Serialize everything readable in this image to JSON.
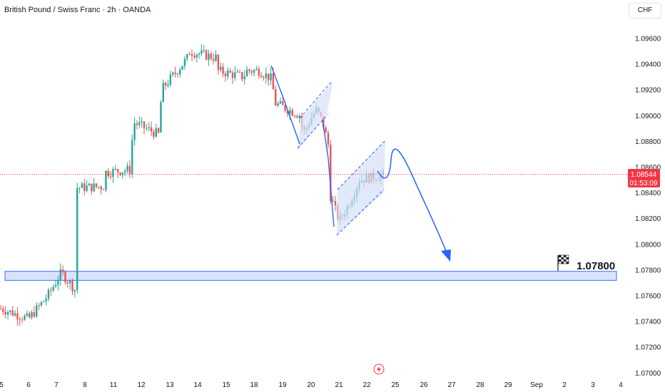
{
  "header": {
    "title": "British Pound / Swiss Franc · 2h · OANDA",
    "currency": "CHF"
  },
  "price_tag": {
    "price": "1.08544",
    "countdown": "01:53:09"
  },
  "target_label": "1.07800",
  "colors": {
    "up": "#26a69a",
    "down": "#ef5350",
    "drawing": "#2962ff",
    "channel_fill": "#d6e0fa",
    "zone_fill": "#d0dcfb",
    "price_line": "#f23645"
  },
  "chart_data": {
    "type": "candlestick",
    "symbol": "British Pound / Swiss Franc",
    "interval": "2h",
    "ylim": [
      1.07,
      1.097
    ],
    "y_ticks": [
      "1.09600",
      "1.09400",
      "1.09200",
      "1.09000",
      "1.08800",
      "1.08600",
      "1.08400",
      "1.08200",
      "1.08000",
      "1.07800",
      "1.07600",
      "1.07400",
      "1.07200",
      "1.07000"
    ],
    "x_ticks": [
      "5",
      "6",
      "7",
      "8",
      "11",
      "12",
      "13",
      "14",
      "15",
      "18",
      "19",
      "20",
      "21",
      "22",
      "25",
      "26",
      "27",
      "28",
      "29",
      "Sep",
      "2",
      "3",
      "4"
    ],
    "last_price": 1.08544,
    "support_zone": [
      1.0772,
      1.0779
    ],
    "target": 1.078,
    "series": [
      {
        "name": "price path",
        "points": [
          [
            "5",
            1.075
          ],
          [
            "6",
            1.0742
          ],
          [
            "7",
            1.076
          ],
          [
            "7",
            1.0778
          ],
          [
            "7",
            1.0765
          ],
          [
            "8",
            1.0844
          ],
          [
            "8",
            1.0845
          ],
          [
            "11",
            1.0856
          ],
          [
            "11",
            1.0858
          ],
          [
            "12",
            1.0895
          ],
          [
            "12",
            1.0885
          ],
          [
            "13",
            1.092
          ],
          [
            "13",
            1.0945
          ],
          [
            "14",
            1.095
          ],
          [
            "14",
            1.0945
          ],
          [
            "15",
            1.0935
          ],
          [
            "15",
            1.093
          ],
          [
            "18",
            1.0935
          ],
          [
            "18",
            1.0935
          ],
          [
            "18",
            1.0928
          ],
          [
            "19",
            1.091
          ],
          [
            "19",
            1.09
          ],
          [
            "20",
            1.0885
          ],
          [
            "20",
            1.0895
          ],
          [
            "20",
            1.0905
          ],
          [
            "20",
            1.0896
          ],
          [
            "20",
            1.0875
          ],
          [
            "21",
            1.0838
          ],
          [
            "21",
            1.0818
          ],
          [
            "21",
            1.083
          ],
          [
            "21",
            1.0845
          ],
          [
            "22",
            1.085
          ],
          [
            "22",
            1.0852
          ],
          [
            "22",
            1.08544
          ]
        ]
      }
    ]
  }
}
